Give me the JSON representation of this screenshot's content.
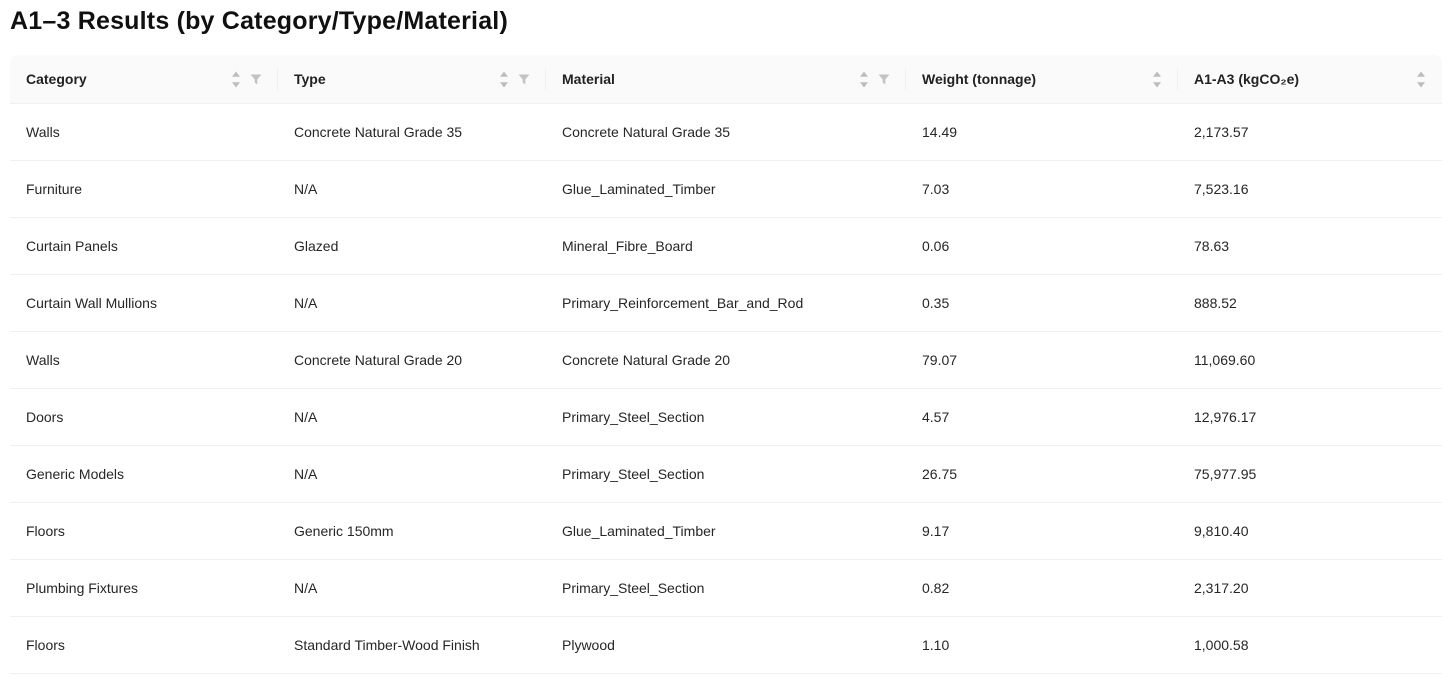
{
  "page": {
    "title": "A1–3 Results (by Category/Type/Material)"
  },
  "table": {
    "columns": [
      {
        "key": "category",
        "label": "Category",
        "sortable": true,
        "filterable": true
      },
      {
        "key": "type",
        "label": "Type",
        "sortable": true,
        "filterable": true
      },
      {
        "key": "material",
        "label": "Material",
        "sortable": true,
        "filterable": true
      },
      {
        "key": "weight",
        "label": "Weight (tonnage)",
        "sortable": true,
        "filterable": false
      },
      {
        "key": "a1a3",
        "label": "A1-A3 (kgCO₂e)",
        "sortable": true,
        "filterable": false
      }
    ],
    "rows": [
      [
        "Walls",
        "Concrete Natural Grade 35",
        "Concrete Natural Grade 35",
        "14.49",
        "2,173.57"
      ],
      [
        "Furniture",
        "N/A",
        "Glue_Laminated_Timber",
        "7.03",
        "7,523.16"
      ],
      [
        "Curtain Panels",
        "Glazed",
        "Mineral_Fibre_Board",
        "0.06",
        "78.63"
      ],
      [
        "Curtain Wall Mullions",
        "N/A",
        "Primary_Reinforcement_Bar_and_Rod",
        "0.35",
        "888.52"
      ],
      [
        "Walls",
        "Concrete Natural Grade 20",
        "Concrete Natural Grade 20",
        "79.07",
        "11,069.60"
      ],
      [
        "Doors",
        "N/A",
        "Primary_Steel_Section",
        "4.57",
        "12,976.17"
      ],
      [
        "Generic Models",
        "N/A",
        "Primary_Steel_Section",
        "26.75",
        "75,977.95"
      ],
      [
        "Floors",
        "Generic 150mm",
        "Glue_Laminated_Timber",
        "9.17",
        "9,810.40"
      ],
      [
        "Plumbing Fixtures",
        "N/A",
        "Primary_Steel_Section",
        "0.82",
        "2,317.20"
      ],
      [
        "Floors",
        "Standard Timber-Wood Finish",
        "Plywood",
        "1.10",
        "1,000.58"
      ]
    ]
  },
  "icons": {
    "sorter": "sort-caret-icon",
    "filter": "filter-funnel-icon"
  },
  "colors": {
    "header_bg": "#fafafa",
    "row_border": "#f0f0f0",
    "text": "#262626",
    "icon_gray": "#bfbfbf"
  }
}
